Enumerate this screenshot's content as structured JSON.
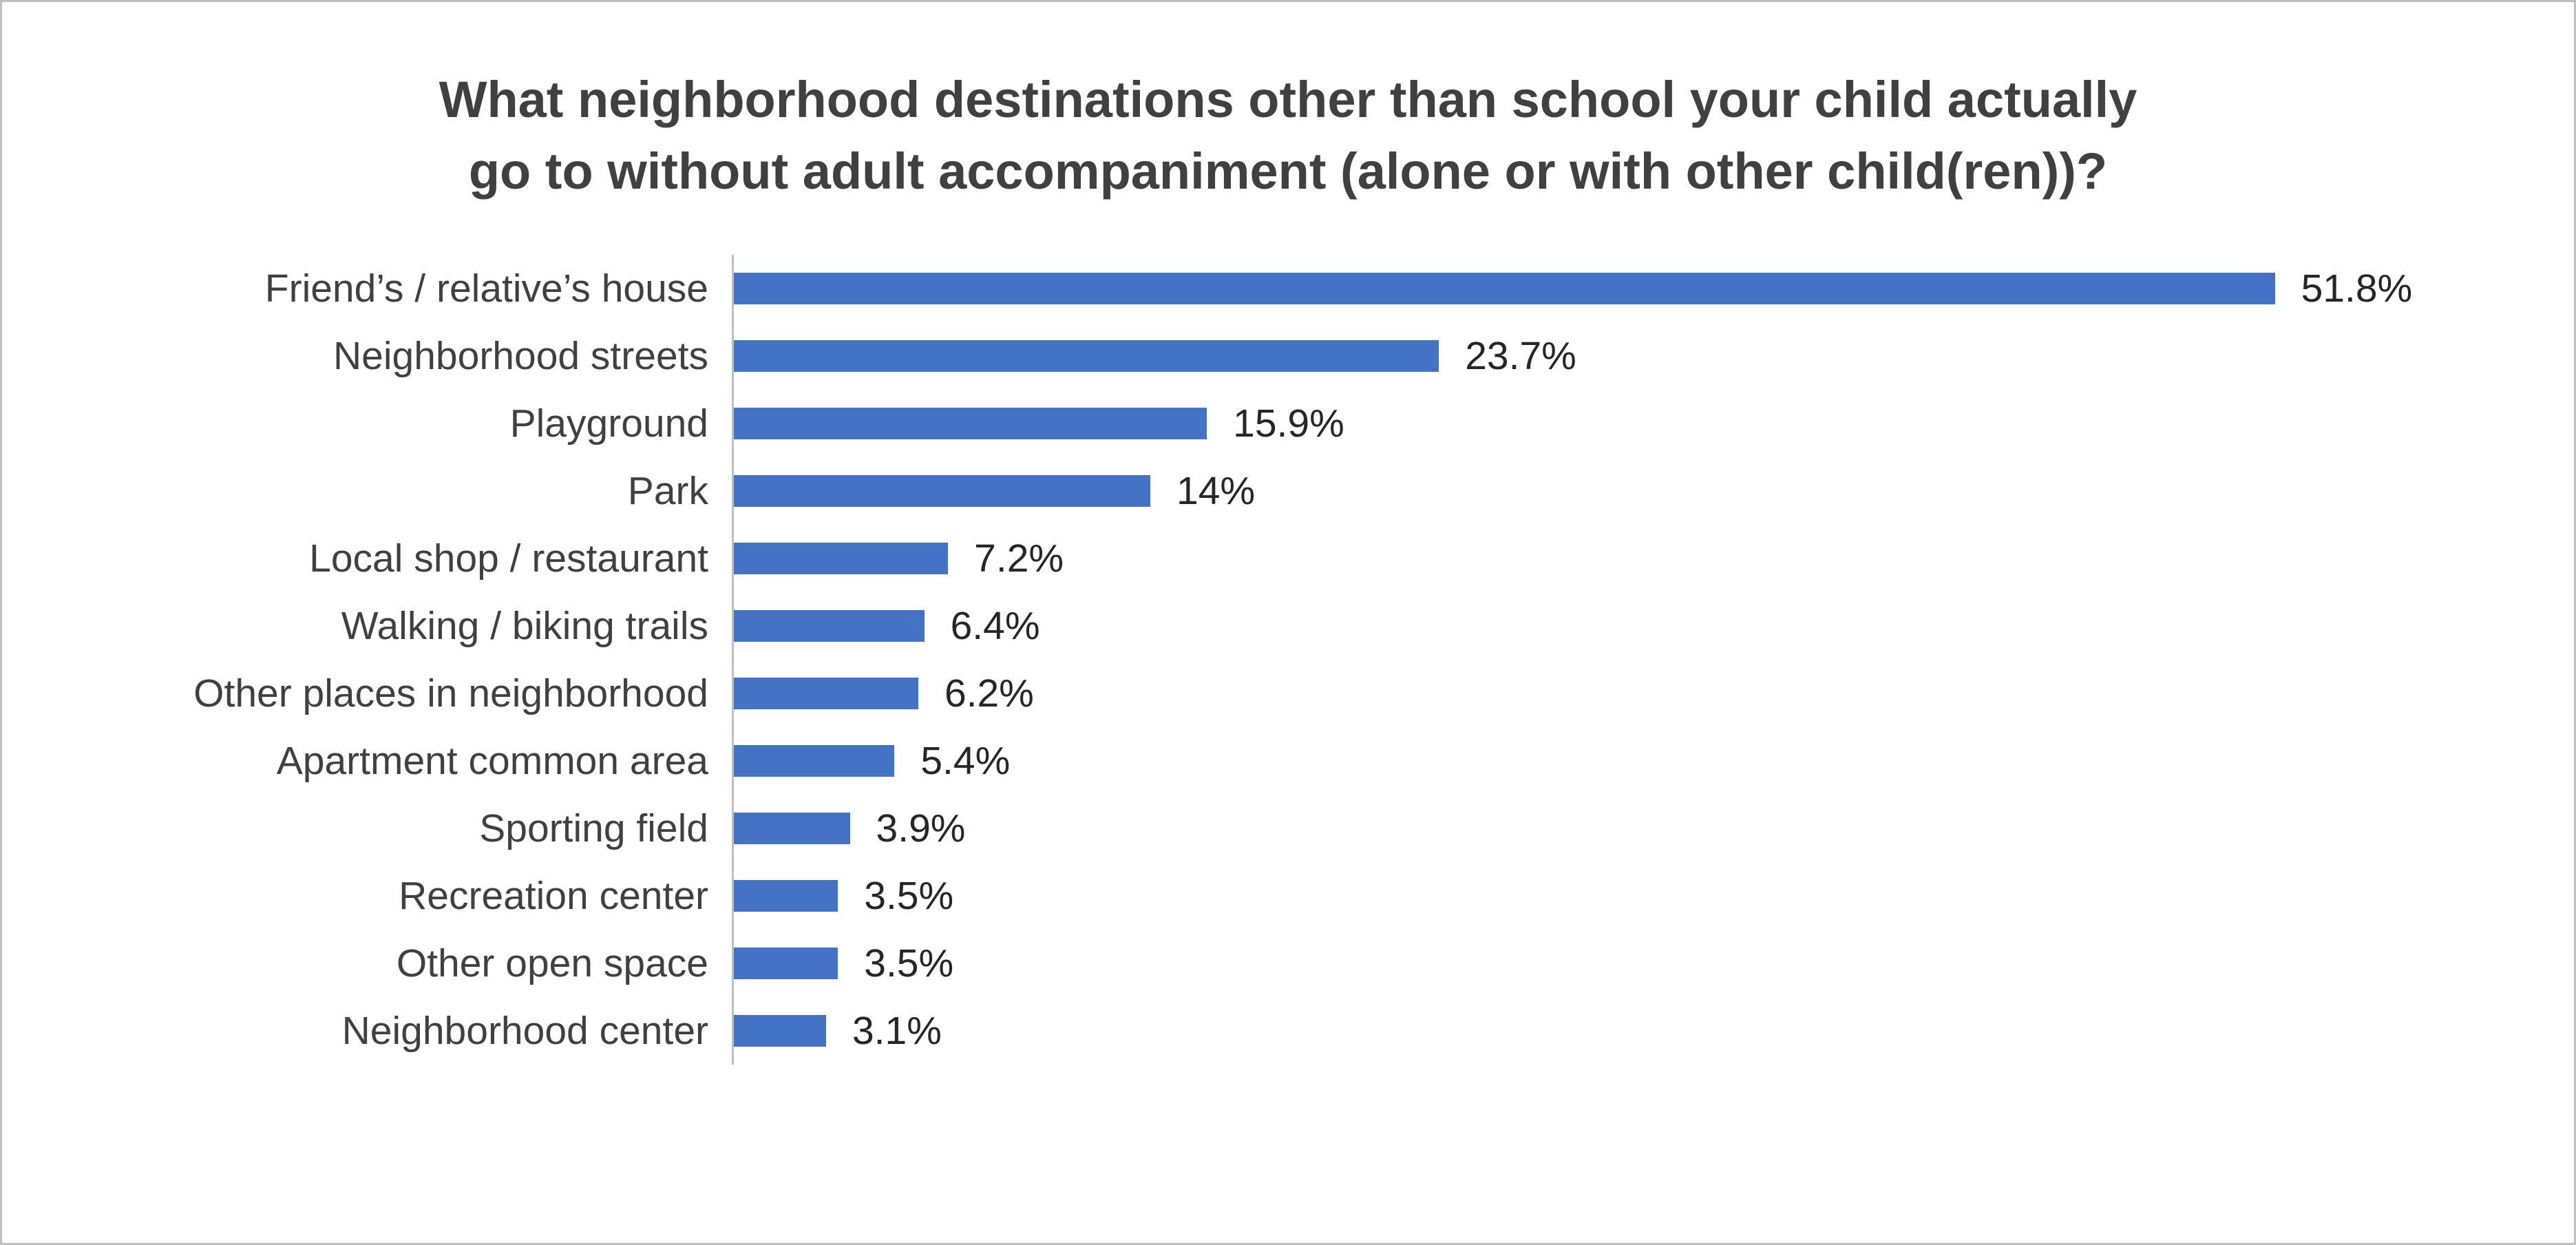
{
  "chart_data": {
    "type": "bar",
    "orientation": "horizontal",
    "title": "What neighborhood destinations other than school your child actually go to without adult accompaniment (alone or with other child(ren))?",
    "categories": [
      "Friend’s / relative’s house",
      "Neighborhood streets",
      "Playground",
      "Park",
      "Local shop / restaurant",
      "Walking / biking trails",
      "Other places in neighborhood",
      "Apartment common area",
      "Sporting field",
      "Recreation center",
      "Other open space",
      "Neighborhood center"
    ],
    "values": [
      51.8,
      23.7,
      15.9,
      14,
      7.2,
      6.4,
      6.2,
      5.4,
      3.9,
      3.5,
      3.5,
      3.1
    ],
    "value_labels": [
      "51.8%",
      "23.7%",
      "15.9%",
      "14%",
      "7.2%",
      "6.4%",
      "6.2%",
      "5.4%",
      "3.9%",
      "3.5%",
      "3.5%",
      "3.1%"
    ],
    "xlim": [
      0,
      60
    ],
    "xlabel": "",
    "ylabel": "",
    "grid": false,
    "legend": false,
    "bar_color": "#4472C4",
    "axis_line_color": "#bfbfbf",
    "title_color": "#404040",
    "label_color": "#404040"
  }
}
